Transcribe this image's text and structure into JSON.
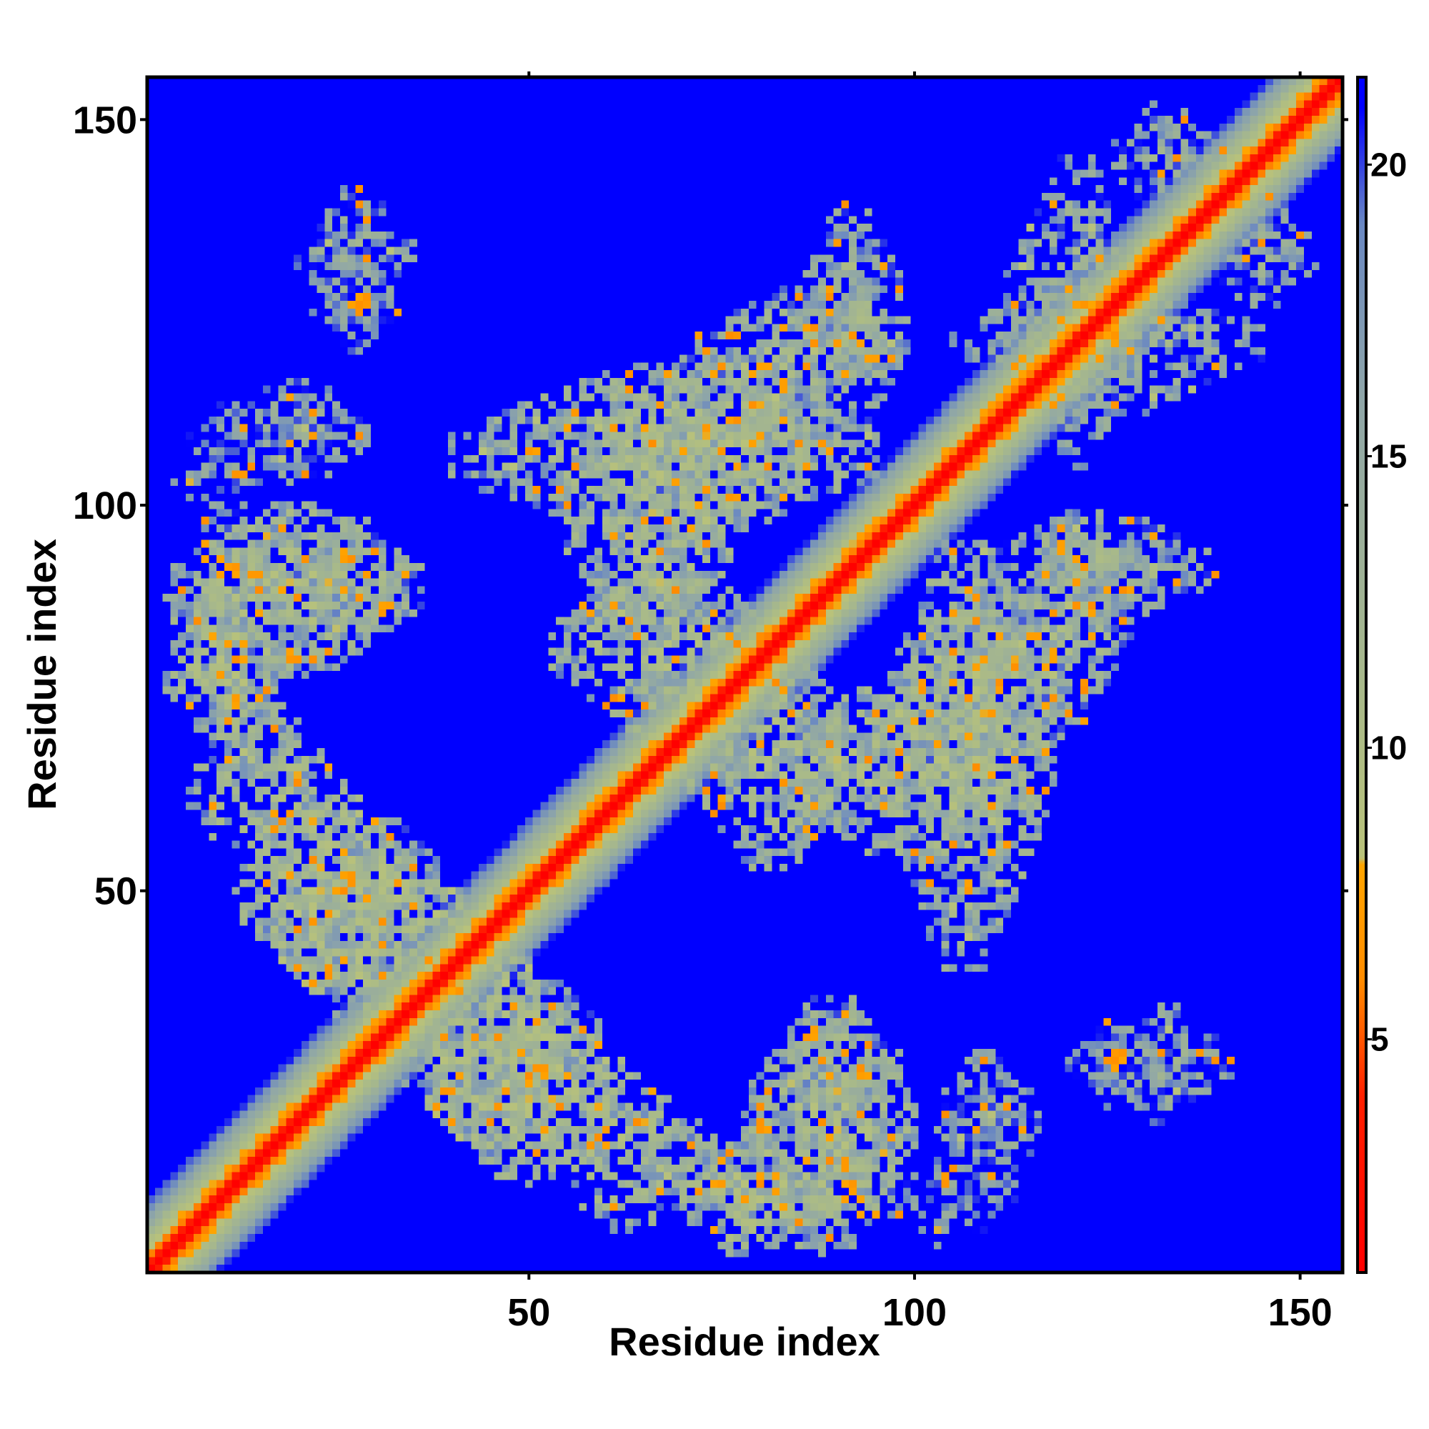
{
  "chart_data": {
    "type": "heatmap",
    "title": "",
    "xlabel": "Residue index",
    "ylabel": "Residue index",
    "n_residues": 155,
    "xlim": [
      1,
      155
    ],
    "ylim": [
      1,
      155
    ],
    "x_ticks": [
      50,
      100,
      150
    ],
    "y_ticks": [
      50,
      100,
      150
    ],
    "colorbar": {
      "range": [
        1,
        21.5
      ],
      "ticks": [
        5,
        10,
        15,
        20
      ],
      "color_stops": [
        {
          "value": 1,
          "color": "#ff0000"
        },
        {
          "value": 4,
          "color": "#ff2000"
        },
        {
          "value": 6,
          "color": "#ff8c00"
        },
        {
          "value": 8,
          "color": "#ffa500"
        },
        {
          "value": 8.1,
          "color": "#b9c27a"
        },
        {
          "value": 11,
          "color": "#a8b98a"
        },
        {
          "value": 16,
          "color": "#8fa6a8"
        },
        {
          "value": 19,
          "color": "#6a88c2"
        },
        {
          "value": 21,
          "color": "#0000ff"
        }
      ]
    },
    "background_value": 21.5,
    "diagonal_band": {
      "value_at_offset": [
        1,
        3.5,
        5.8,
        8,
        10,
        12,
        14,
        16,
        18,
        20
      ]
    },
    "contact_regions": [
      {
        "x": [
          3,
          36
        ],
        "y": [
          78,
          100
        ],
        "level": 12
      },
      {
        "x": [
          10,
          30
        ],
        "y": [
          103,
          116
        ],
        "level": 15
      },
      {
        "x": [
          22,
          33
        ],
        "y": [
          120,
          133
        ],
        "level": 16
      },
      {
        "x": [
          3,
          16
        ],
        "y": [
          70,
          84
        ],
        "level": 11
      },
      {
        "x": [
          12,
          38
        ],
        "y": [
          37,
          62
        ],
        "level": 11
      },
      {
        "x": [
          33,
          60
        ],
        "y": [
          16,
          42
        ],
        "level": 12
      },
      {
        "x": [
          52,
          74
        ],
        "y": [
          6,
          26
        ],
        "level": 12
      },
      {
        "x": [
          68,
          97
        ],
        "y": [
          4,
          20
        ],
        "level": 12
      },
      {
        "x": [
          84,
          98
        ],
        "y": [
          18,
          36
        ],
        "level": 13
      },
      {
        "x": [
          96,
          114
        ],
        "y": [
          4,
          16
        ],
        "level": 17
      },
      {
        "x": [
          124,
          141
        ],
        "y": [
          20,
          35
        ],
        "level": 15
      },
      {
        "x": [
          40,
          95
        ],
        "y": [
          95,
          118
        ],
        "level": 12
      },
      {
        "x": [
          72,
          98
        ],
        "y": [
          112,
          128
        ],
        "level": 13
      },
      {
        "x": [
          53,
          82
        ],
        "y": [
          70,
          93
        ],
        "level": 12
      },
      {
        "x": [
          83,
          105
        ],
        "y": [
          55,
          76
        ],
        "level": 12
      },
      {
        "x": [
          98,
          120
        ],
        "y": [
          60,
          90
        ],
        "level": 12
      },
      {
        "x": [
          108,
          140
        ],
        "y": [
          85,
          99
        ],
        "level": 13
      },
      {
        "x": [
          105,
          145
        ],
        "y": [
          112,
          130
        ],
        "level": 14
      },
      {
        "x": [
          125,
          140
        ],
        "y": [
          138,
          152
        ],
        "level": 15
      }
    ]
  }
}
